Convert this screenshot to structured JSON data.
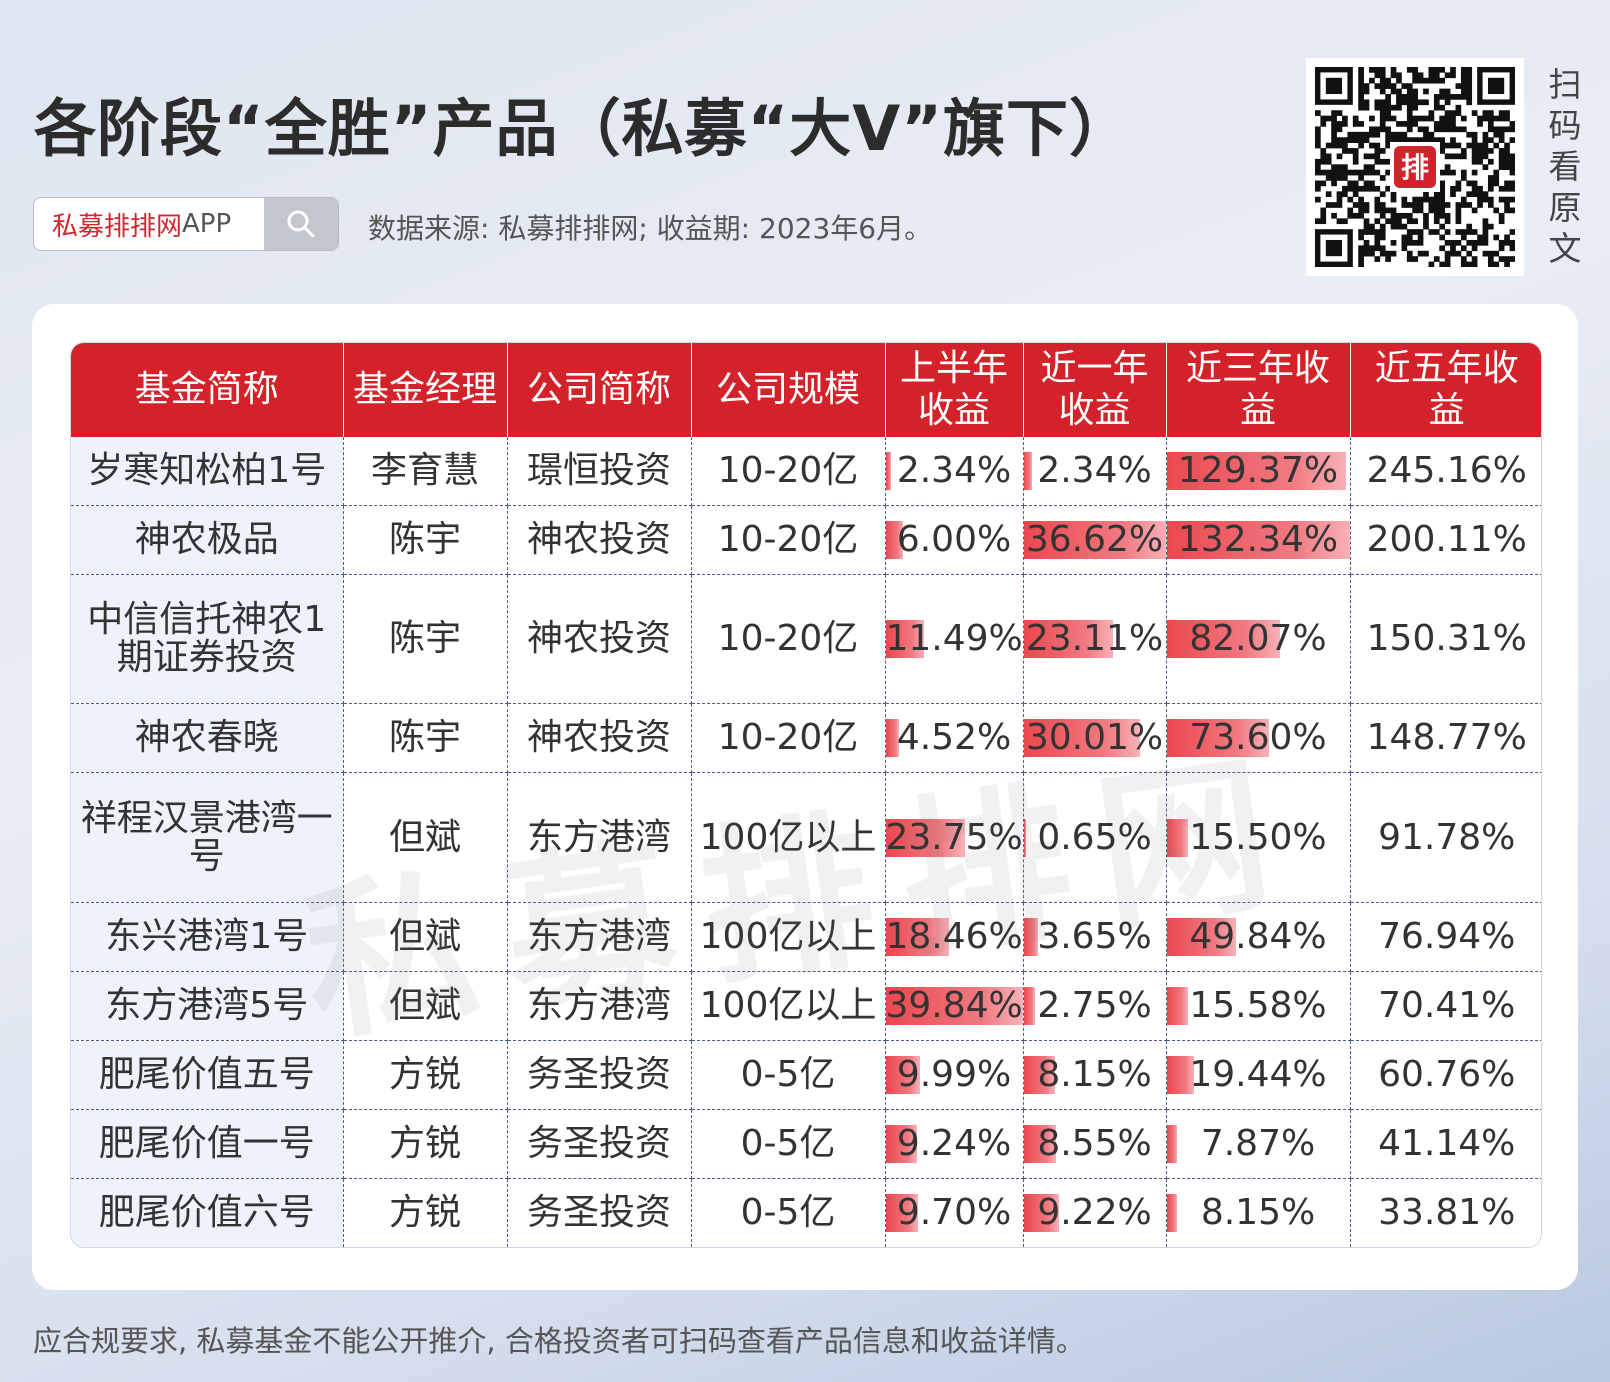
{
  "title": "各阶段“全胜”产品（私募“大V”旗下）",
  "search": {
    "brand": "私募排排网",
    "suffix": "APP",
    "icon": "search-icon"
  },
  "source_note": "数据来源: 私募排排网; 收益期: 2023年6月。",
  "qr": {
    "side_text": [
      "扫",
      "码",
      "看",
      "原",
      "文"
    ],
    "logo_text": "排"
  },
  "watermark": "私募排排网",
  "table": {
    "headers": [
      "基金简称",
      "基金经理",
      "公司简称",
      "公司规模",
      "上半年收益",
      "近一年收益",
      "近三年收益",
      "近五年收益"
    ],
    "header_lines": [
      [
        "基金简称"
      ],
      [
        "基金经理"
      ],
      [
        "公司简称"
      ],
      [
        "公司规模"
      ],
      [
        "上半年",
        "收益"
      ],
      [
        "近一年",
        "收益"
      ],
      [
        "近三年收",
        "益"
      ],
      [
        "近五年收",
        "益"
      ]
    ],
    "bar_color": "#e8333a",
    "header_color": "#d4222a",
    "rows": [
      {
        "fund": "岁寒知松柏1号",
        "manager": "李育慧",
        "company": "璟恒投资",
        "scale": "10-20亿",
        "h1": "2.34%",
        "y1": "2.34%",
        "y3": "129.37%",
        "y5": "245.16%",
        "h1_bar": 0.04,
        "y1_bar": 0.06,
        "y3_bar": 0.98
      },
      {
        "fund": "神农极品",
        "manager": "陈宇",
        "company": "神农投资",
        "scale": "10-20亿",
        "h1": "6.00%",
        "y1": "36.62%",
        "y3": "132.34%",
        "y5": "200.11%",
        "h1_bar": 0.13,
        "y1_bar": 1.0,
        "y3_bar": 1.0
      },
      {
        "fund": "中信信托神农1期证券投资",
        "manager": "陈宇",
        "company": "神农投资",
        "scale": "10-20亿",
        "h1": "11.49%",
        "y1": "23.11%",
        "y3": "82.07%",
        "y5": "150.31%",
        "h1_bar": 0.28,
        "y1_bar": 0.63,
        "y3_bar": 0.62
      },
      {
        "fund": "神农春晓",
        "manager": "陈宇",
        "company": "神农投资",
        "scale": "10-20亿",
        "h1": "4.52%",
        "y1": "30.01%",
        "y3": "73.60%",
        "y5": "148.77%",
        "h1_bar": 0.1,
        "y1_bar": 0.82,
        "y3_bar": 0.56
      },
      {
        "fund": "祥程汉景港湾一号",
        "manager": "但斌",
        "company": "东方港湾",
        "scale": "100亿以上",
        "h1": "23.75%",
        "y1": "0.65%",
        "y3": "15.50%",
        "y5": "91.78%",
        "h1_bar": 0.58,
        "y1_bar": 0.02,
        "y3_bar": 0.12
      },
      {
        "fund": "东兴港湾1号",
        "manager": "但斌",
        "company": "东方港湾",
        "scale": "100亿以上",
        "h1": "18.46%",
        "y1": "3.65%",
        "y3": "49.84%",
        "y5": "76.94%",
        "h1_bar": 0.46,
        "y1_bar": 0.1,
        "y3_bar": 0.38
      },
      {
        "fund": "东方港湾5号",
        "manager": "但斌",
        "company": "东方港湾",
        "scale": "100亿以上",
        "h1": "39.84%",
        "y1": "2.75%",
        "y3": "15.58%",
        "y5": "70.41%",
        "h1_bar": 1.0,
        "y1_bar": 0.08,
        "y3_bar": 0.12
      },
      {
        "fund": "肥尾价值五号",
        "manager": "方锐",
        "company": "务圣投资",
        "scale": "0-5亿",
        "h1": "9.99%",
        "y1": "8.15%",
        "y3": "19.44%",
        "y5": "60.76%",
        "h1_bar": 0.25,
        "y1_bar": 0.22,
        "y3_bar": 0.15
      },
      {
        "fund": "肥尾价值一号",
        "manager": "方锐",
        "company": "务圣投资",
        "scale": "0-5亿",
        "h1": "9.24%",
        "y1": "8.55%",
        "y3": "7.87%",
        "y5": "41.14%",
        "h1_bar": 0.23,
        "y1_bar": 0.23,
        "y3_bar": 0.06
      },
      {
        "fund": "肥尾价值六号",
        "manager": "方锐",
        "company": "务圣投资",
        "scale": "0-5亿",
        "h1": "9.70%",
        "y1": "9.22%",
        "y3": "8.15%",
        "y5": "33.81%",
        "h1_bar": 0.24,
        "y1_bar": 0.25,
        "y3_bar": 0.06
      }
    ]
  },
  "footer": "应合规要求, 私募基金不能公开推介, 合格投资者可扫码查看产品信息和收益详情。"
}
